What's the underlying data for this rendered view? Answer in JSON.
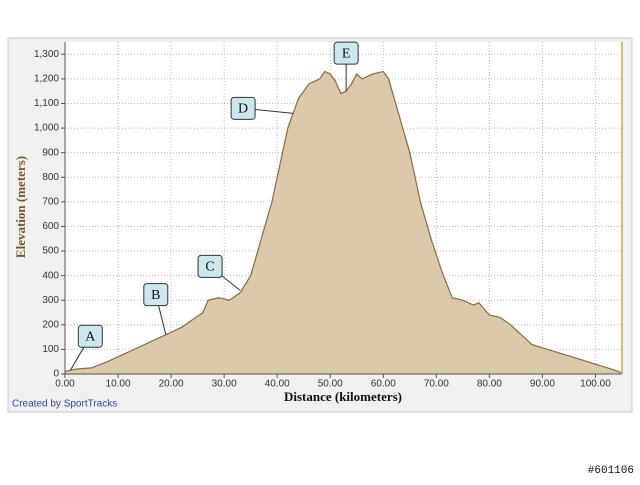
{
  "chart_data": {
    "type": "area",
    "x_label": "Distance (kilometers)",
    "y_label": "Elevation (meters)",
    "credit": "Created by SportTracks",
    "watermark": "#601106",
    "fill_color": "#dcc8aa",
    "line_color": "#8a6b40",
    "grid": true,
    "xlim": [
      0,
      105
    ],
    "ylim": [
      0,
      1350
    ],
    "xticks": [
      {
        "value": 0,
        "label": "0.00"
      },
      {
        "value": 10,
        "label": "10.00"
      },
      {
        "value": 20,
        "label": "20.00"
      },
      {
        "value": 30,
        "label": "30.00"
      },
      {
        "value": 40,
        "label": "40.00"
      },
      {
        "value": 50,
        "label": "50.00"
      },
      {
        "value": 60,
        "label": "60.00"
      },
      {
        "value": 70,
        "label": "70.00"
      },
      {
        "value": 80,
        "label": "80.00"
      },
      {
        "value": 90,
        "label": "90.00"
      },
      {
        "value": 100,
        "label": "100.00"
      }
    ],
    "yticks": [
      0,
      100,
      200,
      300,
      400,
      500,
      600,
      700,
      800,
      900,
      {
        "value": 1000,
        "label": "1,000"
      },
      {
        "value": 1100,
        "label": "1,100"
      },
      {
        "value": 1200,
        "label": "1,200"
      },
      {
        "value": 1300,
        "label": "1,300"
      }
    ],
    "x": [
      0,
      2,
      5,
      8,
      12,
      16,
      19,
      22,
      24,
      26,
      27,
      29,
      31,
      33,
      35,
      37,
      39,
      41,
      42,
      43,
      44,
      46,
      48,
      49,
      50,
      51,
      52,
      53,
      54,
      55,
      56,
      58,
      60,
      61,
      63,
      65,
      67,
      69,
      71,
      73,
      75,
      77,
      78,
      80,
      82,
      84,
      86,
      88,
      91,
      94,
      97,
      100,
      103,
      105
    ],
    "values": [
      10,
      20,
      25,
      50,
      90,
      130,
      160,
      190,
      220,
      250,
      300,
      310,
      300,
      330,
      400,
      550,
      700,
      900,
      1000,
      1060,
      1120,
      1180,
      1200,
      1230,
      1220,
      1190,
      1140,
      1150,
      1180,
      1220,
      1200,
      1220,
      1230,
      1200,
      1050,
      900,
      700,
      550,
      420,
      310,
      300,
      280,
      290,
      240,
      230,
      200,
      160,
      120,
      100,
      80,
      60,
      40,
      20,
      5
    ],
    "annotations": [
      {
        "text": "A",
        "x": 1,
        "y": 15
      },
      {
        "text": "B",
        "x": 19,
        "y": 160
      },
      {
        "text": "C",
        "x": 33,
        "y": 340
      },
      {
        "text": "D",
        "x": 43,
        "y": 1060
      },
      {
        "text": "E",
        "x": 53,
        "y": 1150
      }
    ]
  }
}
